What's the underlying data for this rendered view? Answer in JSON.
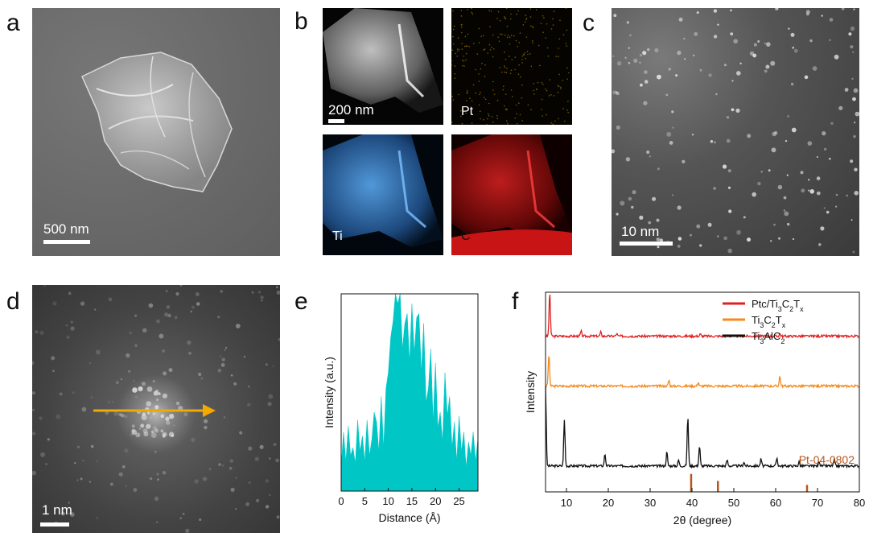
{
  "panels": {
    "a": {
      "label": "a",
      "scale_bar": "500 nm"
    },
    "b": {
      "label": "b",
      "scale_bar": "200 nm",
      "maps": [
        "Pt",
        "Ti",
        "C"
      ],
      "colors": {
        "pt": "#c9a000",
        "ti": "#3b8fdc",
        "c": "#d01818"
      }
    },
    "c": {
      "label": "c",
      "scale_bar": "10 nm"
    },
    "d": {
      "label": "d",
      "scale_bar": "1 nm",
      "arrow_color": "#f2a900"
    },
    "e": {
      "label": "e"
    },
    "f": {
      "label": "f"
    }
  },
  "chart_data": [
    {
      "type": "area",
      "panel": "e",
      "xlabel": "Distance (Å)",
      "ylabel": "Intensity (a.u.)",
      "xlim": [
        0,
        29
      ],
      "ylim": [
        0,
        1
      ],
      "xticks": [
        "0",
        "5",
        "10",
        "15",
        "20",
        "25"
      ],
      "fill_color": "#00c6c6",
      "x": [
        0,
        0.5,
        1,
        1.5,
        2,
        2.5,
        3,
        3.5,
        4,
        4.5,
        5,
        5.5,
        6,
        6.5,
        7,
        7.5,
        8,
        8.5,
        9,
        9.5,
        10,
        10.5,
        11,
        11.5,
        12,
        12.5,
        13,
        13.5,
        14,
        14.5,
        15,
        15.5,
        16,
        16.5,
        17,
        17.5,
        18,
        18.5,
        19,
        19.5,
        20,
        20.5,
        21,
        21.5,
        22,
        22.5,
        23,
        23.5,
        24,
        24.5,
        25,
        25.5,
        26,
        26.5,
        27,
        27.5,
        28,
        28.5,
        29
      ],
      "values": [
        0.12,
        0.3,
        0.15,
        0.33,
        0.18,
        0.22,
        0.14,
        0.36,
        0.2,
        0.28,
        0.15,
        0.36,
        0.18,
        0.26,
        0.4,
        0.35,
        0.2,
        0.48,
        0.22,
        0.52,
        0.6,
        0.78,
        0.86,
        1.0,
        0.95,
        1.0,
        0.72,
        0.85,
        0.9,
        0.65,
        0.95,
        0.7,
        0.88,
        0.9,
        0.6,
        0.85,
        0.45,
        0.52,
        0.72,
        0.35,
        0.65,
        0.32,
        0.4,
        0.25,
        0.6,
        0.38,
        0.48,
        0.22,
        0.35,
        0.15,
        0.38,
        0.2,
        0.3,
        0.12,
        0.25,
        0.18,
        0.3,
        0.15,
        0.27
      ]
    },
    {
      "type": "line",
      "panel": "f",
      "xlabel": "2θ (degree)",
      "ylabel": "Intensity",
      "xlim": [
        5,
        80
      ],
      "xticks": [
        "10",
        "20",
        "30",
        "40",
        "50",
        "60",
        "70",
        "80"
      ],
      "series": [
        {
          "name": "Ptc/Ti3C2Tx",
          "color": "#e02020",
          "baseline": 0.78,
          "peaks": [
            [
              6.0,
              0.22
            ],
            [
              13.5,
              0.025
            ],
            [
              18.2,
              0.02
            ],
            [
              22.0,
              0.012
            ],
            [
              42.0,
              0.01
            ],
            [
              61.0,
              0.012
            ]
          ]
        },
        {
          "name": "Ti3C2Tx",
          "color": "#f58a1f",
          "baseline": 0.53,
          "peaks": [
            [
              5.8,
              0.16
            ],
            [
              34.5,
              0.03
            ],
            [
              41.5,
              0.02
            ],
            [
              61.0,
              0.05
            ]
          ]
        },
        {
          "name": "Ti3AlC2",
          "color": "#111111",
          "baseline": 0.13,
          "peaks": [
            [
              5.0,
              0.4
            ],
            [
              9.5,
              0.23
            ],
            [
              19.2,
              0.06
            ],
            [
              34.0,
              0.07
            ],
            [
              36.8,
              0.03
            ],
            [
              39.0,
              0.25
            ],
            [
              41.8,
              0.1
            ],
            [
              48.4,
              0.03
            ],
            [
              52.4,
              0.02
            ],
            [
              56.5,
              0.035
            ],
            [
              60.3,
              0.04
            ],
            [
              65.6,
              0.02
            ],
            [
              70.4,
              0.025
            ],
            [
              74.0,
              0.03
            ]
          ]
        }
      ],
      "reference": {
        "name": "Pt-04-0802",
        "color": "#b5561c",
        "positions": [
          39.8,
          46.2,
          67.5
        ],
        "heights": [
          0.09,
          0.055,
          0.035
        ]
      }
    }
  ]
}
